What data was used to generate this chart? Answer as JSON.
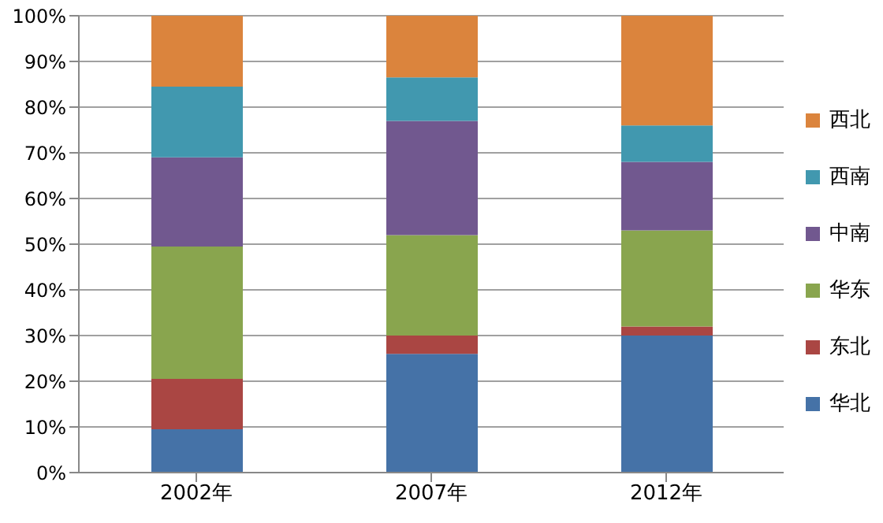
{
  "chart_data": {
    "type": "bar",
    "stacked": true,
    "categories": [
      "2002年",
      "2007年",
      "2012年"
    ],
    "series": [
      {
        "name": "华北",
        "color": "#4572a7",
        "values": [
          9.5,
          26,
          30
        ]
      },
      {
        "name": "东北",
        "color": "#aa4643",
        "values": [
          11,
          4,
          2
        ]
      },
      {
        "name": "华东",
        "color": "#89a54e",
        "values": [
          29,
          22,
          21
        ]
      },
      {
        "name": "中南",
        "color": "#71588f",
        "values": [
          19.5,
          25,
          15
        ]
      },
      {
        "name": "西南",
        "color": "#4198af",
        "values": [
          15.5,
          9.5,
          8
        ]
      },
      {
        "name": "西北",
        "color": "#db843d",
        "values": [
          15.5,
          13.5,
          24
        ]
      }
    ],
    "ylim": [
      0,
      100
    ],
    "yticks": [
      {
        "value": 0,
        "label": "0%"
      },
      {
        "value": 10,
        "label": "10%"
      },
      {
        "value": 20,
        "label": "20%"
      },
      {
        "value": 30,
        "label": "30%"
      },
      {
        "value": 40,
        "label": "40%"
      },
      {
        "value": 50,
        "label": "50%"
      },
      {
        "value": 60,
        "label": "60%"
      },
      {
        "value": 70,
        "label": "70%"
      },
      {
        "value": 80,
        "label": "80%"
      },
      {
        "value": 90,
        "label": "90%"
      },
      {
        "value": 100,
        "label": "100%"
      }
    ],
    "grid": "y",
    "legend": "right"
  }
}
